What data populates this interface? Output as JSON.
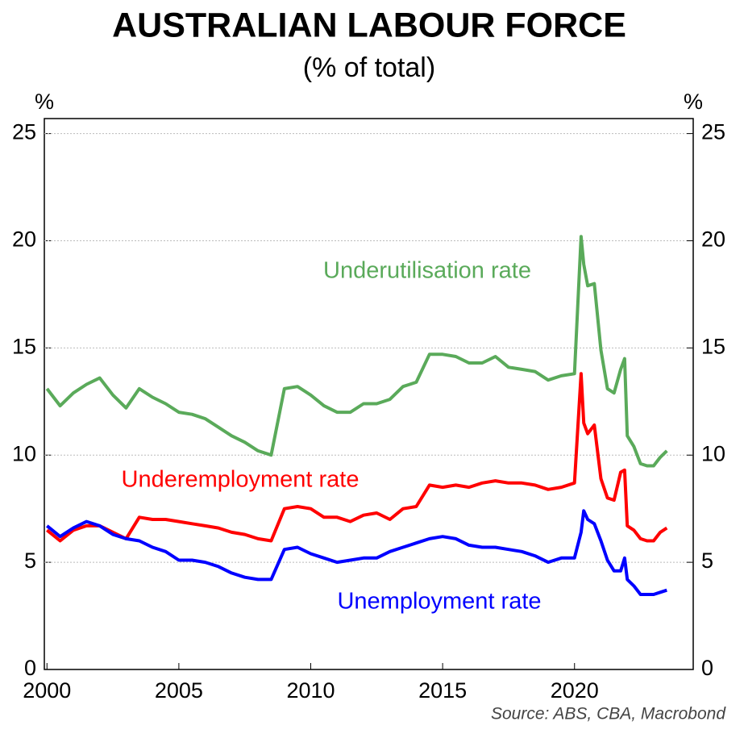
{
  "chart_data": {
    "type": "line",
    "title": "AUSTRALIAN LABOUR FORCE",
    "subtitle": "(% of total)",
    "y_label": "%",
    "y2_label": "%",
    "source": "Source: ABS, CBA, Macrobond",
    "xlim": [
      1999.9,
      2024.5
    ],
    "xticks": [
      2000,
      2005,
      2010,
      2015,
      2020
    ],
    "ylim": [
      0,
      25.7
    ],
    "yticks": [
      0,
      5,
      10,
      15,
      20,
      25
    ],
    "y2lim": [
      0,
      25.7
    ],
    "y2ticks": [
      0,
      5,
      10,
      15,
      20,
      25
    ],
    "grid": true,
    "x": [
      2000,
      2000.5,
      2001,
      2001.5,
      2002,
      2002.5,
      2003,
      2003.5,
      2004,
      2004.5,
      2005,
      2005.5,
      2006,
      2006.5,
      2007,
      2007.5,
      2008,
      2008.5,
      2009,
      2009.5,
      2010,
      2010.5,
      2011,
      2011.5,
      2012,
      2012.5,
      2013,
      2013.5,
      2014,
      2014.5,
      2015,
      2015.5,
      2016,
      2016.5,
      2017,
      2017.5,
      2018,
      2018.5,
      2019,
      2019.5,
      2020,
      2020.25,
      2020.35,
      2020.5,
      2020.75,
      2021,
      2021.25,
      2021.5,
      2021.75,
      2021.9,
      2022,
      2022.25,
      2022.5,
      2022.75,
      2023,
      2023.25,
      2023.5
    ],
    "series": [
      {
        "name": "Underutilisation rate",
        "color": "#5aaa5a",
        "values": [
          13.1,
          12.3,
          12.9,
          13.3,
          13.6,
          12.8,
          12.2,
          13.1,
          12.7,
          12.4,
          12.0,
          11.9,
          11.7,
          11.3,
          10.9,
          10.6,
          10.2,
          10.0,
          13.1,
          13.2,
          12.8,
          12.3,
          12.0,
          12.0,
          12.4,
          12.4,
          12.6,
          13.2,
          13.4,
          14.7,
          14.7,
          14.6,
          14.3,
          14.3,
          14.6,
          14.1,
          14.0,
          13.9,
          13.5,
          13.7,
          13.8,
          20.2,
          18.9,
          17.9,
          18.0,
          14.9,
          13.1,
          12.9,
          14.0,
          14.5,
          10.9,
          10.4,
          9.6,
          9.5,
          9.5,
          9.9,
          10.2
        ]
      },
      {
        "name": "Underemployment rate",
        "color": "#ff0000",
        "values": [
          6.5,
          6.0,
          6.5,
          6.7,
          6.7,
          6.4,
          6.1,
          7.1,
          7.0,
          7.0,
          6.9,
          6.8,
          6.7,
          6.6,
          6.4,
          6.3,
          6.1,
          6.0,
          7.5,
          7.6,
          7.5,
          7.1,
          7.1,
          6.9,
          7.2,
          7.3,
          7.0,
          7.5,
          7.6,
          8.6,
          8.5,
          8.6,
          8.5,
          8.7,
          8.8,
          8.7,
          8.7,
          8.6,
          8.4,
          8.5,
          8.7,
          13.8,
          11.5,
          11.0,
          11.4,
          8.9,
          8.0,
          7.9,
          9.2,
          9.3,
          6.7,
          6.5,
          6.1,
          6.0,
          6.0,
          6.4,
          6.6
        ]
      },
      {
        "name": "Unemployment rate",
        "color": "#0000ff",
        "values": [
          6.7,
          6.2,
          6.6,
          6.9,
          6.7,
          6.3,
          6.1,
          6.0,
          5.7,
          5.5,
          5.1,
          5.1,
          5.0,
          4.8,
          4.5,
          4.3,
          4.2,
          4.2,
          5.6,
          5.7,
          5.4,
          5.2,
          5.0,
          5.1,
          5.2,
          5.2,
          5.5,
          5.7,
          5.9,
          6.1,
          6.2,
          6.1,
          5.8,
          5.7,
          5.7,
          5.6,
          5.5,
          5.3,
          5.0,
          5.2,
          5.2,
          6.4,
          7.4,
          7.0,
          6.8,
          6.0,
          5.1,
          4.6,
          4.6,
          5.2,
          4.2,
          3.9,
          3.5,
          3.5,
          3.5,
          3.6,
          3.7
        ]
      }
    ]
  }
}
